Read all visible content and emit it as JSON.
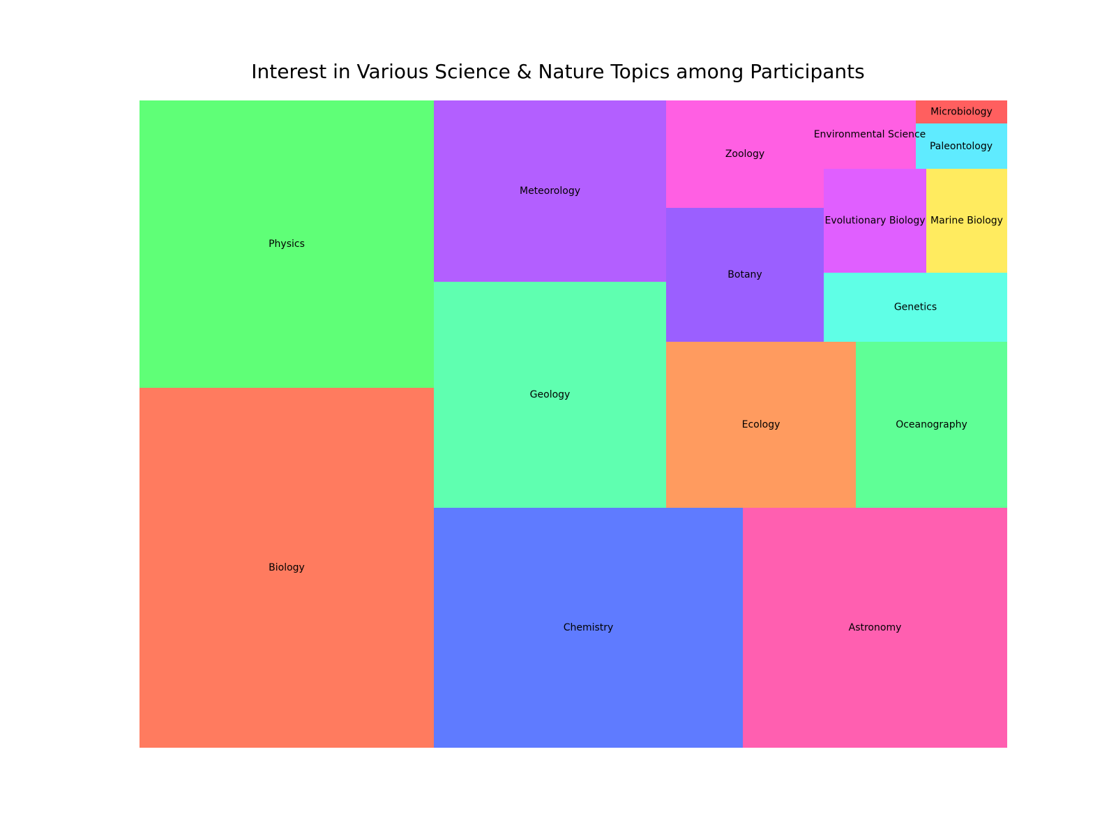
{
  "chart_data": {
    "type": "treemap",
    "title": "Interest in Various Science & Nature Topics among Participants",
    "items": [
      {
        "label": "Biology",
        "value": 20.7,
        "color": "#FF7B5F"
      },
      {
        "label": "Physics",
        "value": 16.6,
        "color": "#5FFF77"
      },
      {
        "label": "Chemistry",
        "value": 14.5,
        "color": "#5F7BFF"
      },
      {
        "label": "Astronomy",
        "value": 12.4,
        "color": "#FF5FB0"
      },
      {
        "label": "Geology",
        "value": 10.3,
        "color": "#5FFFB0"
      },
      {
        "label": "Meteorology",
        "value": 8.3,
        "color": "#B35FFF"
      },
      {
        "label": "Ecology",
        "value": 6.2,
        "color": "#FF9B5F"
      },
      {
        "label": "Oceanography",
        "value": 5.0,
        "color": "#5FFF96"
      },
      {
        "label": "Zoology",
        "value": 3.3,
        "color": "#FF5FE3"
      },
      {
        "label": "Botany",
        "value": 4.1,
        "color": "#9B5FFF"
      },
      {
        "label": "Environmental Science",
        "value": 1.8,
        "color": "#FF5FE3"
      },
      {
        "label": "Evolutionary Biology",
        "value": 2.1,
        "color": "#E05FFF"
      },
      {
        "label": "Marine Biology",
        "value": 1.7,
        "color": "#FFEB5F"
      },
      {
        "label": "Genetics",
        "value": 2.5,
        "color": "#5FFFE6"
      },
      {
        "label": "Paleontology",
        "value": 0.8,
        "color": "#5FEBFF"
      },
      {
        "label": "Microbiology",
        "value": 0.4,
        "color": "#FF5F5F"
      }
    ]
  }
}
